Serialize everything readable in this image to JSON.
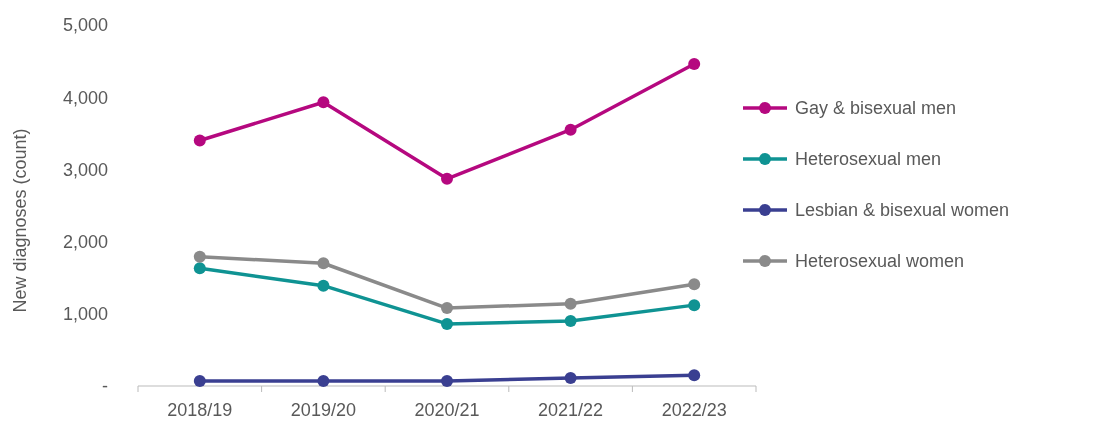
{
  "chart_data": {
    "type": "line",
    "ylabel": "New diagnoses (count)",
    "categories": [
      "2018/19",
      "2019/20",
      "2020/21",
      "2021/22",
      "2022/23"
    ],
    "series": [
      {
        "name": "Gay & bisexual men",
        "color": "#b5087f",
        "values": [
          3400,
          3930,
          2870,
          3550,
          4460
        ]
      },
      {
        "name": "Heterosexual men",
        "color": "#0f9393",
        "values": [
          1630,
          1390,
          860,
          900,
          1120
        ]
      },
      {
        "name": "Lesbian & bisexual women",
        "color": "#3a3f91",
        "values": [
          70,
          70,
          70,
          110,
          150
        ]
      },
      {
        "name": "Heterosexual women",
        "color": "#8a8a8a",
        "values": [
          1790,
          1700,
          1080,
          1140,
          1410
        ]
      }
    ],
    "ylim": [
      0,
      5000
    ],
    "yticks": [
      {
        "value": 0,
        "label": "-"
      },
      {
        "value": 1000,
        "label": "1,000"
      },
      {
        "value": 2000,
        "label": "2,000"
      },
      {
        "value": 3000,
        "label": "3,000"
      },
      {
        "value": 4000,
        "label": "4,000"
      },
      {
        "value": 5000,
        "label": "5,000"
      }
    ],
    "legend": "right",
    "marker": "circle",
    "grid": false
  }
}
